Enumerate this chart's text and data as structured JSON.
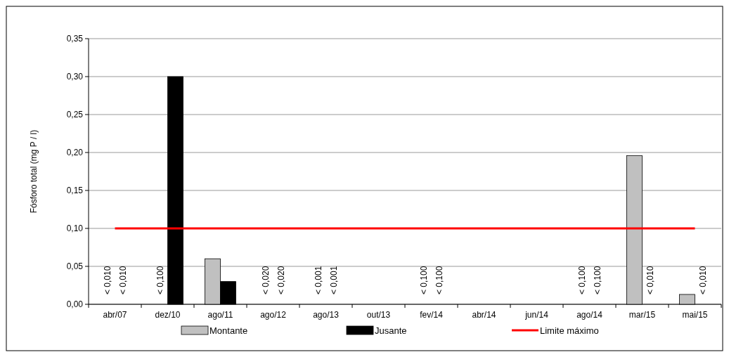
{
  "chart_data": {
    "type": "bar",
    "ylabel": "Fósforo total (mg P / l)",
    "categories": [
      "abr/07",
      "dez/10",
      "ago/11",
      "ago/12",
      "ago/13",
      "out/13",
      "fev/14",
      "abr/14",
      "jun/14",
      "ago/14",
      "mar/15",
      "mai/15"
    ],
    "series": [
      {
        "name": "Montante",
        "color": "#c0c0c0",
        "values": [
          null,
          null,
          0.06,
          null,
          null,
          null,
          null,
          null,
          null,
          null,
          0.196,
          0.013
        ],
        "value_labels": [
          "< 0,010",
          "< 0,100",
          null,
          "< 0,020",
          "< 0,001",
          null,
          "< 0,100",
          null,
          null,
          "< 0,100",
          null,
          null
        ]
      },
      {
        "name": "Jusante",
        "color": "#000000",
        "values": [
          null,
          0.3,
          0.03,
          null,
          null,
          null,
          null,
          null,
          null,
          null,
          null,
          null
        ],
        "value_labels": [
          "< 0,010",
          null,
          null,
          "< 0,020",
          "< 0,001",
          null,
          "< 0,100",
          null,
          null,
          "< 0,100",
          "< 0,010",
          "< 0,010"
        ]
      },
      {
        "name": "Limite máximo",
        "type": "line",
        "color": "#ff0000",
        "values": [
          0.1,
          0.1,
          0.1,
          0.1,
          0.1,
          0.1,
          0.1,
          0.1,
          0.1,
          0.1,
          0.1,
          0.1
        ]
      }
    ],
    "ylim": [
      0,
      0.35
    ],
    "yticks": [
      {
        "value": 0,
        "label": "0,00"
      },
      {
        "value": 0.05,
        "label": "0,05"
      },
      {
        "value": 0.1,
        "label": "0,10"
      },
      {
        "value": 0.15,
        "label": "0,15"
      },
      {
        "value": 0.2,
        "label": "0,20"
      },
      {
        "value": 0.25,
        "label": "0,25"
      },
      {
        "value": 0.3,
        "label": "0,30"
      },
      {
        "value": 0.35,
        "label": "0,35"
      }
    ],
    "grid": "y",
    "legend": "bottom",
    "marker": "none"
  }
}
